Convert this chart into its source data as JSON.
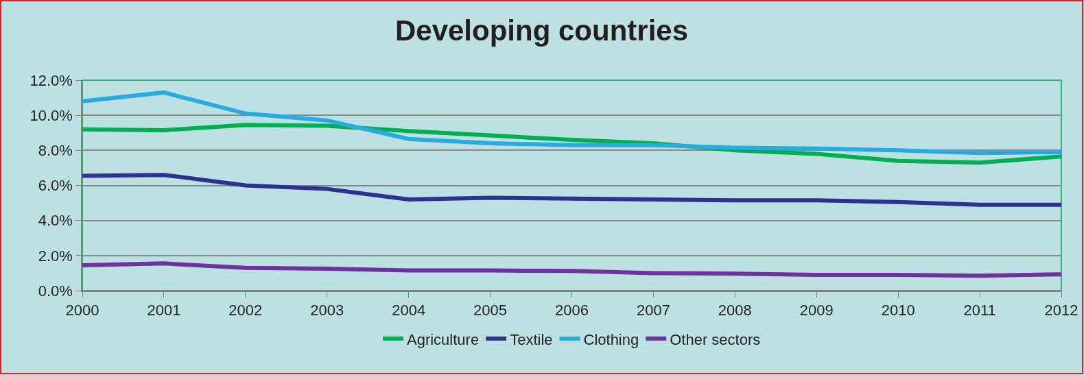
{
  "chart_data": {
    "type": "line",
    "title": "Developing countries",
    "categories": [
      "2000",
      "2001",
      "2002",
      "2003",
      "2004",
      "2005",
      "2006",
      "2007",
      "2008",
      "2009",
      "2010",
      "2011",
      "2012"
    ],
    "series": [
      {
        "name": "Agriculture",
        "color": "#00b050",
        "values": [
          9.2,
          9.15,
          9.45,
          9.4,
          9.1,
          8.85,
          8.6,
          8.4,
          8.0,
          7.8,
          7.4,
          7.3,
          7.65
        ]
      },
      {
        "name": "Textile",
        "color": "#2e3192",
        "values": [
          6.55,
          6.6,
          6.0,
          5.8,
          5.2,
          5.3,
          5.25,
          5.2,
          5.15,
          5.15,
          5.05,
          4.9,
          4.9
        ]
      },
      {
        "name": "Clothing",
        "color": "#29abe2",
        "values": [
          10.8,
          11.3,
          10.1,
          9.7,
          8.65,
          8.4,
          8.3,
          8.3,
          8.15,
          8.1,
          8.0,
          7.85,
          7.9
        ]
      },
      {
        "name": "Other sectors",
        "color": "#7030a0",
        "values": [
          1.45,
          1.55,
          1.3,
          1.25,
          1.15,
          1.15,
          1.12,
          1.0,
          0.97,
          0.9,
          0.9,
          0.85,
          0.93
        ]
      }
    ],
    "ylim": [
      0,
      12
    ],
    "yticks": [
      {
        "value": 0,
        "label": "0.0%"
      },
      {
        "value": 2,
        "label": "2.0%"
      },
      {
        "value": 4,
        "label": "4.0%"
      },
      {
        "value": 6,
        "label": "6.0%"
      },
      {
        "value": 8,
        "label": "8.0%"
      },
      {
        "value": 10,
        "label": "10.0%"
      },
      {
        "value": 12,
        "label": "12.0%"
      }
    ],
    "grid": "y",
    "legend": "bottom",
    "marker": "none",
    "line_style": "solid"
  }
}
